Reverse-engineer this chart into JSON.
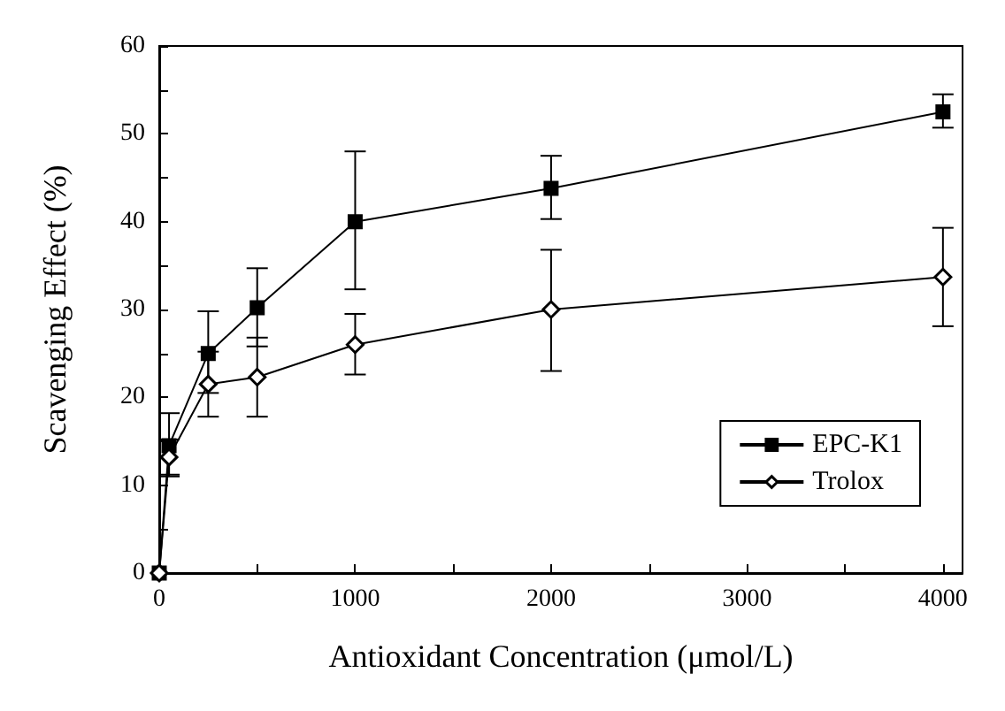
{
  "chart_data": {
    "type": "line",
    "xlabel": "Antioxidant Concentration (μmol/L)",
    "ylabel": "Scavenging Effect (%)",
    "x": [
      0,
      50,
      250,
      500,
      1000,
      2000,
      4000
    ],
    "series": [
      {
        "name": "EPC-K1",
        "color": "#000000",
        "marker": "square",
        "values": [
          0,
          14.5,
          25,
          30.2,
          40,
          43.8,
          52.5
        ],
        "errors": [
          null,
          [
            11,
            18.2
          ],
          [
            20.5,
            29.8
          ],
          [
            25.8,
            34.7
          ],
          [
            32.3,
            48
          ],
          [
            40.3,
            47.5
          ],
          [
            50.7,
            54.5
          ]
        ]
      },
      {
        "name": "Trolox",
        "color": "#000000",
        "marker": "diamond",
        "values": [
          0,
          13.2,
          21.5,
          22.3,
          26,
          30,
          33.7
        ],
        "errors": [
          null,
          [
            11.2,
            15.2
          ],
          [
            17.8,
            25.2
          ],
          [
            17.8,
            26.8
          ],
          [
            22.6,
            29.5
          ],
          [
            23,
            36.8
          ],
          [
            28.1,
            39.3
          ]
        ]
      }
    ],
    "xlim": [
      0,
      4100
    ],
    "xticks": [
      0,
      {
        "value": 500,
        "label": null
      },
      1000,
      {
        "value": 1500,
        "label": null
      },
      2000,
      {
        "value": 2500,
        "label": null
      },
      3000,
      {
        "value": 3500,
        "label": null
      },
      4000
    ],
    "ylim": [
      0,
      60
    ],
    "yticks": [
      0,
      {
        "value": 5,
        "label": null
      },
      10,
      {
        "value": 15,
        "label": null
      },
      20,
      {
        "value": 25,
        "label": null
      },
      30,
      {
        "value": 35,
        "label": null
      },
      40,
      {
        "value": 45,
        "label": null
      },
      50,
      {
        "value": 55,
        "label": null
      },
      60
    ],
    "legend": "bottom right",
    "grid": false,
    "line_style": "solid"
  }
}
